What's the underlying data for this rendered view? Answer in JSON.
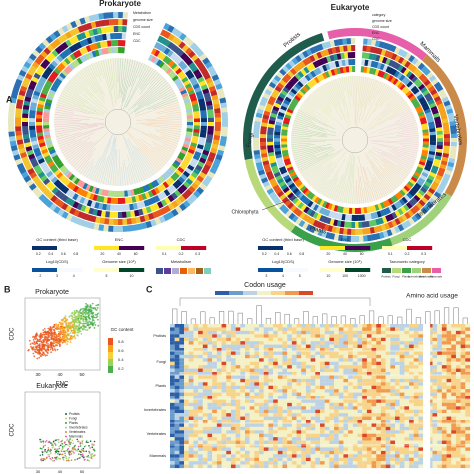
{
  "panel_a": {
    "label": "A",
    "prokaryote": {
      "title": "Prokaryote",
      "rings": [
        "Metabolism",
        "genome size",
        "CDS count",
        "ENC",
        "CDC"
      ]
    },
    "eukaryote": {
      "title": "Eukaryote",
      "rings": [
        "category",
        "genome size",
        "CDS count",
        "ENC",
        "CDC"
      ],
      "categories": [
        "Protists",
        "Mammals",
        "Vertebrates",
        "Invertebrates",
        "Plants",
        "Fungi",
        "Chlorophyta"
      ]
    },
    "legends_prokaryote": [
      {
        "title": "GC content (third base)",
        "ticks": [
          "0.2",
          "0.4",
          "0.6",
          "0.8"
        ]
      },
      {
        "title": "ENC",
        "ticks": [
          "20",
          "40",
          "60"
        ]
      },
      {
        "title": "CDC",
        "ticks": [
          "0.1",
          "0.2",
          "0.3"
        ]
      },
      {
        "title": "Log10(CDS)",
        "ticks": [
          "2",
          "3",
          "4"
        ]
      },
      {
        "title": "Genome size (10⁶)",
        "ticks": [
          "5",
          "10"
        ]
      },
      {
        "title": "Metabolism",
        "ticks": []
      }
    ],
    "legends_eukaryote": [
      {
        "title": "GC content (third base)",
        "ticks": [
          "0.2",
          "0.4",
          "0.6",
          "0.8"
        ]
      },
      {
        "title": "ENC",
        "ticks": [
          "20",
          "40",
          "60"
        ]
      },
      {
        "title": "CDC",
        "ticks": [
          "0.1",
          "0.2",
          "0.3"
        ]
      },
      {
        "title": "Log10(CDS)",
        "ticks": [
          "3",
          "4",
          "5"
        ]
      },
      {
        "title": "Genome size (10⁶)",
        "ticks": [
          "10",
          "100",
          "1000"
        ]
      },
      {
        "title": "Taxonomic category",
        "ticks": [
          "Protists",
          "Fungi",
          "Plants",
          "Invertebrates",
          "Vertebrates",
          "Mammals"
        ]
      }
    ]
  },
  "panel_b": {
    "label": "B",
    "prokaryote": {
      "title": "Prokaryote",
      "ylabel": "CDC",
      "xlabel": "ENC",
      "xticks": [
        "30",
        "40",
        "50"
      ]
    },
    "gc_legend": {
      "title": "GC content",
      "ticks": [
        "0.2",
        "0.4",
        "0.6",
        "0.8"
      ]
    },
    "eukaryote": {
      "title": "Eukaryote",
      "ylabel": "CDC",
      "xticks": [
        "30",
        "40",
        "50"
      ],
      "legend": [
        "Protists",
        "Fungi",
        "Plants",
        "Invertebrates",
        "Vertebrates",
        "Mammals"
      ]
    }
  },
  "panel_c": {
    "label": "C",
    "codon_title": "Codon usage",
    "aa_title": "Amino acid usage",
    "rows": [
      "Protists",
      "Fungi",
      "Plants",
      "Invertebrates",
      "Vertebrates",
      "Mammals"
    ]
  }
}
